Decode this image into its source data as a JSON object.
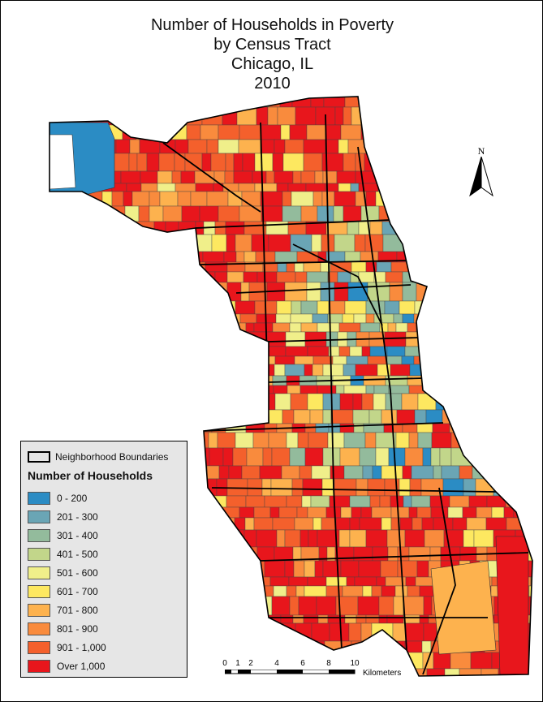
{
  "title": {
    "line1": "Number of Households in Poverty",
    "line2": "by Census Tract",
    "line3": "Chicago, IL",
    "line4": "2010"
  },
  "north_arrow": {
    "label": "N"
  },
  "legend": {
    "boundary_label": "Neighborhood Boundaries",
    "title": "Number of Households",
    "classes": [
      {
        "label": "0 - 200",
        "color": "#2b8cc4"
      },
      {
        "label": "201 - 300",
        "color": "#6aa5b5"
      },
      {
        "label": "301 - 400",
        "color": "#93bb9c"
      },
      {
        "label": "401 - 500",
        "color": "#c2d68a"
      },
      {
        "label": "501 - 600",
        "color": "#f0ef8a"
      },
      {
        "label": "601 - 700",
        "color": "#fde860"
      },
      {
        "label": "701 - 800",
        "color": "#fdb24e"
      },
      {
        "label": "801 - 900",
        "color": "#f98b3d"
      },
      {
        "label": "901 - 1,000",
        "color": "#f4602c"
      },
      {
        "label": "Over 1,000",
        "color": "#e8161c"
      }
    ]
  },
  "scale_bar": {
    "ticks": [
      "0",
      "1",
      "2",
      "4",
      "6",
      "8",
      "10"
    ],
    "unit": "Kilometers"
  }
}
